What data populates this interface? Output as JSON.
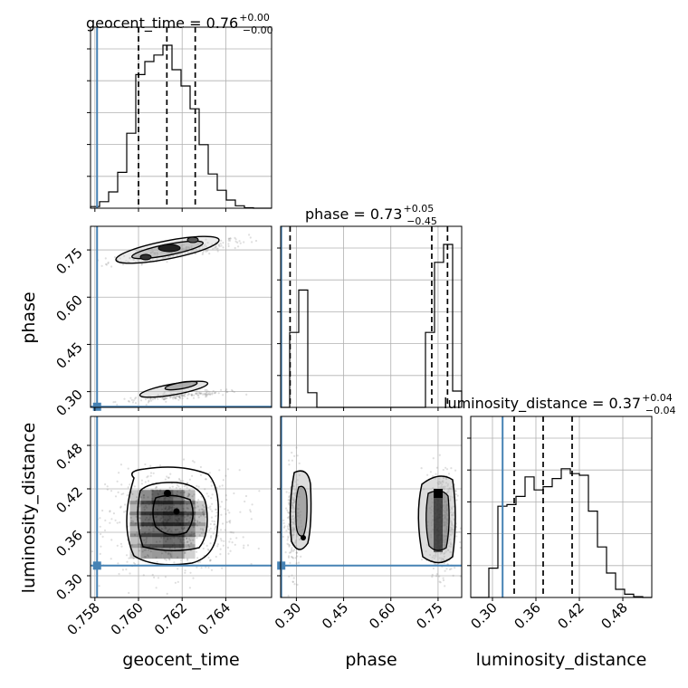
{
  "chart_data": {
    "type": "corner",
    "parameters": [
      "geocent_time",
      "phase",
      "luminosity_distance"
    ],
    "truths": {
      "geocent_time": 0.7581,
      "phase": 0.252,
      "luminosity_distance": 0.314
    },
    "titles": [
      {
        "param": "geocent_time",
        "text": "geocent_time = 0.76",
        "sup": "+0.00",
        "sub": "−0.00"
      },
      {
        "param": "phase",
        "text": "phase = 0.73",
        "sup": "+0.05",
        "sub": "−0.45"
      },
      {
        "param": "luminosity_distance",
        "text": "luminosity_distance = 0.37",
        "sup": "+0.04",
        "sub": "−0.04"
      }
    ],
    "ranges": {
      "geocent_time": [
        0.7578,
        0.7661
      ],
      "phase": [
        0.25,
        0.825
      ],
      "luminosity_distance": [
        0.27,
        0.52
      ]
    },
    "axis_labels": {
      "x": [
        "geocent_time",
        "phase",
        "luminosity_distance"
      ],
      "y": [
        "phase",
        "luminosity_distance"
      ]
    },
    "ticks": {
      "geocent_time": [
        "0.758",
        "0.760",
        "0.762",
        "0.764"
      ],
      "phase": [
        "0.30",
        "0.45",
        "0.60",
        "0.75"
      ],
      "luminosity_distance": [
        "0.30",
        "0.36",
        "0.42",
        "0.48"
      ]
    },
    "quantiles": {
      "geocent_time": [
        0.76,
        0.7613,
        0.7626
      ],
      "phase": [
        0.28,
        0.73,
        0.78
      ],
      "luminosity_distance": [
        0.33,
        0.37,
        0.41
      ]
    },
    "histograms": {
      "geocent_time": {
        "edges_start": 0.7578,
        "bin_width": 0.000415,
        "counts": [
          0.01,
          0.04,
          0.1,
          0.22,
          0.46,
          0.82,
          0.9,
          0.94,
          1.0,
          0.85,
          0.75,
          0.61,
          0.39,
          0.21,
          0.11,
          0.05,
          0.015,
          0.003,
          0.0,
          0.0
        ]
      },
      "phase": {
        "edges_start": 0.25,
        "bin_width": 0.02875,
        "counts": [
          0.0,
          0.46,
          0.72,
          0.09,
          0.0,
          0.0,
          0.0,
          0.0,
          0.0,
          0.0,
          0.0,
          0.0,
          0.0,
          0.0,
          0.0,
          0.0,
          0.46,
          0.89,
          1.0,
          0.1
        ]
      },
      "luminosity_distance": {
        "edges_start": 0.27,
        "bin_width": 0.0125,
        "counts": [
          0.0,
          0.0,
          0.18,
          0.56,
          0.57,
          0.62,
          0.74,
          0.66,
          0.68,
          0.73,
          0.79,
          0.76,
          0.75,
          0.53,
          0.31,
          0.15,
          0.05,
          0.02,
          0.005,
          0.0
        ]
      }
    },
    "grid": true,
    "colors": {
      "truth": "#4682b4",
      "contour": "#000000",
      "quantile": "#000000",
      "grid": "#b0b0b0",
      "points": "#808080"
    }
  }
}
